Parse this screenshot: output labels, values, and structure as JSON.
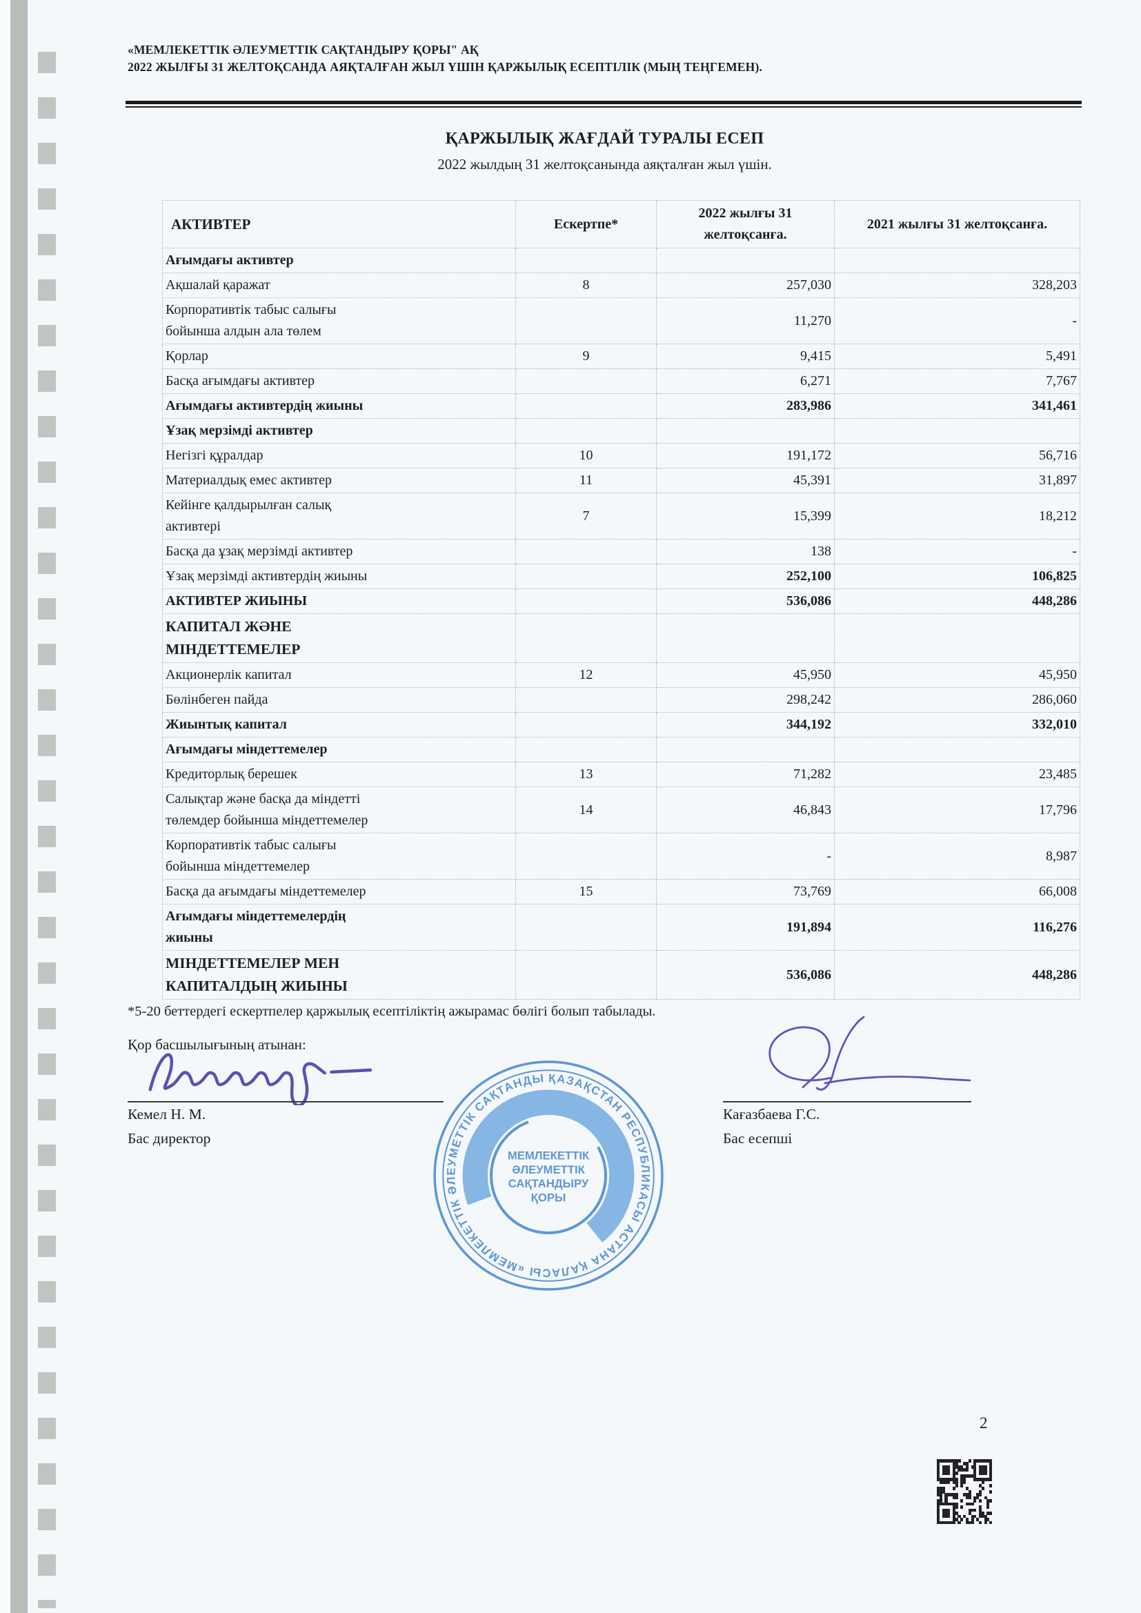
{
  "header": {
    "line1": "«МЕМЛЕКЕТТІК ӘЛЕУМЕТТІК САҚТАНДЫРУ ҚОРЫ\" АҚ",
    "line2": "2022 ЖЫЛҒЫ 31 ЖЕЛТОҚСАНДА АЯҚТАЛҒАН ЖЫЛ ҮШІН ҚАРЖЫЛЫҚ ЕСЕПТІЛІК (МЫҢ ТЕҢГЕМЕН)."
  },
  "title": "ҚАРЖЫЛЫҚ ЖАҒДАЙ ТУРАЛЫ ЕСЕП",
  "subtitle": "2022 жылдың 31 желтоқсанында аяқталған жыл үшін.",
  "table": {
    "columns": [
      "АКТИВТЕР",
      "Ескертпе*",
      "2022 жылғы 31 желтоқсанға.",
      "2021 жылғы 31 желтоқсанға."
    ],
    "rows": [
      {
        "label": "Ағымдағы активтер",
        "note": "",
        "v2022": "",
        "v2021": "",
        "style": "section"
      },
      {
        "label": "Ақшалай қаражат",
        "note": "8",
        "v2022": "257,030",
        "v2021": "328,203",
        "style": "normal"
      },
      {
        "label": "Корпоративтік табыс салығы\nбойынша алдын ала төлем",
        "note": "",
        "v2022": "11,270",
        "v2021": "-",
        "style": "normal"
      },
      {
        "label": "Қорлар",
        "note": "9",
        "v2022": "9,415",
        "v2021": "5,491",
        "style": "normal"
      },
      {
        "label": "Басқа ағымдағы активтер",
        "note": "",
        "v2022": "6,271",
        "v2021": "7,767",
        "style": "normal"
      },
      {
        "label": "Ағымдағы активтердің жиыны",
        "note": "",
        "v2022": "283,986",
        "v2021": "341,461",
        "style": "total"
      },
      {
        "label": "Ұзақ мерзімді активтер",
        "note": "",
        "v2022": "",
        "v2021": "",
        "style": "section"
      },
      {
        "label": "Негізгі құралдар",
        "note": "10",
        "v2022": "191,172",
        "v2021": "56,716",
        "style": "normal"
      },
      {
        "label": "Материалдық емес активтер",
        "note": "11",
        "v2022": "45,391",
        "v2021": "31,897",
        "style": "normal"
      },
      {
        "label": "Кейінге қалдырылған салық\nактивтері",
        "note": "7",
        "v2022": "15,399",
        "v2021": "18,212",
        "style": "normal"
      },
      {
        "label": "Басқа да ұзақ мерзімді активтер",
        "note": "",
        "v2022": "138",
        "v2021": "-",
        "style": "normal"
      },
      {
        "label": "Ұзақ мерзімді активтердің жиыны",
        "note": "",
        "v2022": "252,100",
        "v2021": "106,825",
        "style": "subtotal"
      },
      {
        "label": "АКТИВТЕР ЖИЫНЫ",
        "note": "",
        "v2022": "536,086",
        "v2021": "448,286",
        "style": "total"
      },
      {
        "label": "КАПИТАЛ ЖӘНЕ\nМІНДЕТТЕМЕЛЕР",
        "note": "",
        "v2022": "",
        "v2021": "",
        "style": "sectionbig"
      },
      {
        "label": "Акционерлік капитал",
        "note": "12",
        "v2022": "45,950",
        "v2021": "45,950",
        "style": "normal"
      },
      {
        "label": "Бөлінбеген пайда",
        "note": "",
        "v2022": "298,242",
        "v2021": "286,060",
        "style": "normal"
      },
      {
        "label": "Жиынтық капитал",
        "note": "",
        "v2022": "344,192",
        "v2021": "332,010",
        "style": "total"
      },
      {
        "label": "Ағымдағы міндеттемелер",
        "note": "",
        "v2022": "",
        "v2021": "",
        "style": "section"
      },
      {
        "label": "Кредиторлық берешек",
        "note": "13",
        "v2022": "71,282",
        "v2021": "23,485",
        "style": "normal"
      },
      {
        "label": "Салықтар және басқа да міндетті\nтөлемдер бойынша міндеттемелер",
        "note": "14",
        "v2022": "46,843",
        "v2021": "17,796",
        "style": "normal"
      },
      {
        "label": "Корпоративтік табыс салығы\nбойынша міндеттемелер",
        "note": "",
        "v2022": "-",
        "v2021": "8,987",
        "style": "normal"
      },
      {
        "label": "Басқа да ағымдағы міндеттемелер",
        "note": "15",
        "v2022": "73,769",
        "v2021": "66,008",
        "style": "normal"
      },
      {
        "label": "Ағымдағы міндеттемелердің\nжиыны",
        "note": "",
        "v2022": "191,894",
        "v2021": "116,276",
        "style": "total"
      },
      {
        "label": "МІНДЕТТЕМЕЛЕР МЕН\nКАПИТАЛДЫҢ ЖИЫНЫ",
        "note": "",
        "v2022": "536,086",
        "v2021": "448,286",
        "style": "grand"
      }
    ]
  },
  "footnote": "*5-20 беттердегі ескертпелер қаржылық есептіліктің ажырамас бөлігі болып табылады.",
  "signoff": {
    "heading": "Қор басшылығының атынан:",
    "left": {
      "name": "Кемел Н. М.",
      "title": "Бас директор"
    },
    "right": {
      "name": "Кағазбаева Г.С.",
      "title": "Бас есепші"
    }
  },
  "stamp": {
    "ring_text": "ҚАЗАҚСТАН РЕСПУБЛИКАСЫ  АСТАНА ҚАЛАСЫ  «МЕМЛЕКЕТТІК ӘЛЕУМЕТТІК САҚТАНДЫРУ ҚОРЫ» АҚ 2",
    "center_lines": [
      "МЕМЛЕКЕТТІК",
      "ӘЛЕУМЕТТІК",
      "САҚТАНДЫРУ",
      "ҚОРЫ"
    ],
    "color": "#4a8ad0"
  },
  "page_number": "2"
}
